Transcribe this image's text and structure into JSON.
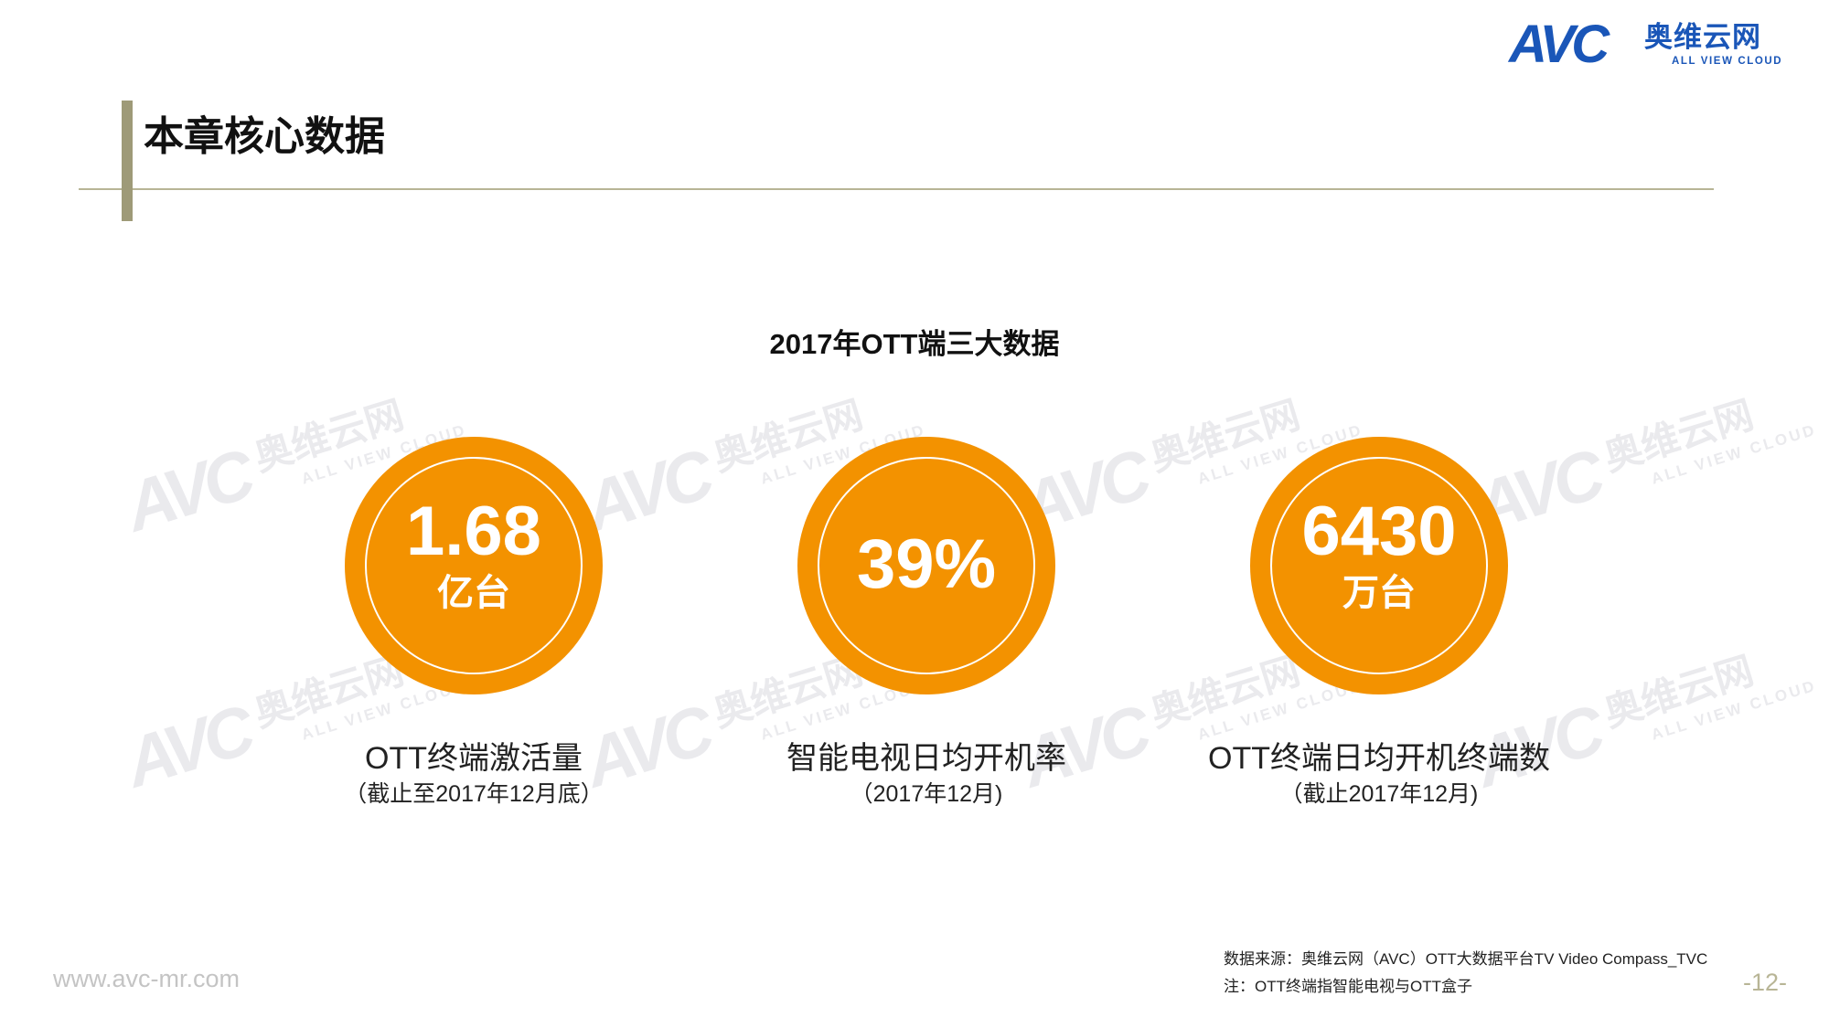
{
  "logo": {
    "mark": "AVC",
    "chinese": "奥维云网",
    "english": "ALL VIEW CLOUD"
  },
  "header": {
    "title": "本章核心数据"
  },
  "main": {
    "title": "2017年OTT端三大数据",
    "stats": [
      {
        "value": "1.68",
        "unit": "亿台",
        "label": "OTT终端激活量",
        "note": "（截止至2017年12月底）"
      },
      {
        "value": "39%",
        "unit": "",
        "label": "智能电视日均开机率",
        "note": "（2017年12月)"
      },
      {
        "value": "6430",
        "unit": "万台",
        "label": "OTT终端日均开机终端数",
        "note": "（截止2017年12月)"
      }
    ]
  },
  "footer": {
    "website": "www.avc-mr.com",
    "source": "数据来源：奥维云网（AVC）OTT大数据平台TV Video Compass_TVC",
    "note": "注：OTT终端指智能电视与OTT盒子",
    "page": "-12-"
  },
  "colors": {
    "accent_orange": "#f39200",
    "brand_blue": "#1a56b8",
    "header_bar": "#9e9a78",
    "header_line": "#b8b596"
  }
}
